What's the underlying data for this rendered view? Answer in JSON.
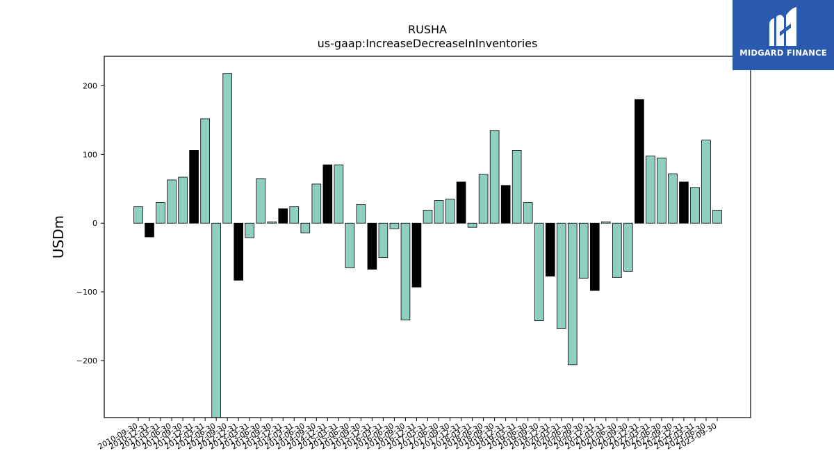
{
  "chart_data": {
    "type": "bar",
    "title": "RUSHA",
    "subtitle": "us-gaap:IncreaseDecreaseInInventories",
    "ylabel": "USDm",
    "xlabel": "",
    "ylim": [
      -283,
      243
    ],
    "yticks": [
      -200,
      -100,
      0,
      100,
      200
    ],
    "ytick_labels": [
      "−200",
      "−100",
      "0",
      "100",
      "200"
    ],
    "grid": false,
    "colors": {
      "default": "#8ecfc0",
      "highlight": "#000000",
      "edge": "#000000"
    },
    "categories": [
      "2010-09-30",
      "2010-12-31",
      "2011-03-31",
      "2011-06-30",
      "2011-09-30",
      "2011-12-31",
      "2012-03-31",
      "2012-06-30",
      "2012-09-30",
      "2012-12-31",
      "2013-03-31",
      "2013-06-30",
      "2013-09-30",
      "2013-12-31",
      "2014-03-31",
      "2014-06-30",
      "2014-09-30",
      "2014-12-31",
      "2015-03-31",
      "2015-06-30",
      "2015-09-30",
      "2015-12-31",
      "2016-03-31",
      "2016-06-30",
      "2016-09-30",
      "2016-12-31",
      "2017-03-31",
      "2017-06-30",
      "2017-09-30",
      "2017-12-31",
      "2018-03-31",
      "2018-06-30",
      "2018-09-30",
      "2018-12-31",
      "2019-03-31",
      "2019-06-30",
      "2019-09-30",
      "2019-12-31",
      "2020-03-31",
      "2020-06-30",
      "2020-09-30",
      "2020-12-31",
      "2021-03-31",
      "2021-06-30",
      "2021-09-30",
      "2021-12-31",
      "2022-03-31",
      "2022-06-30",
      "2022-09-30",
      "2022-12-31",
      "2023-03-31",
      "2023-06-30",
      "2023-09-30"
    ],
    "values": [
      24,
      -20,
      30,
      63,
      67,
      106,
      152,
      -283,
      218,
      -83,
      -21,
      65,
      2,
      21,
      24,
      -14,
      57,
      85,
      85,
      -65,
      27,
      -67,
      -50,
      -8,
      -141,
      -93,
      19,
      33,
      35,
      60,
      -6,
      71,
      135,
      55,
      106,
      30,
      -142,
      -77,
      -153,
      -206,
      -80,
      -98,
      2,
      -79,
      -70,
      180,
      98,
      95,
      72,
      60,
      52,
      121,
      19
    ],
    "highlight_indices": [
      1,
      5,
      9,
      13,
      17,
      21,
      25,
      29,
      33,
      37,
      41,
      45,
      49
    ]
  },
  "logo": {
    "name": "MIDGARD FINANCE"
  }
}
